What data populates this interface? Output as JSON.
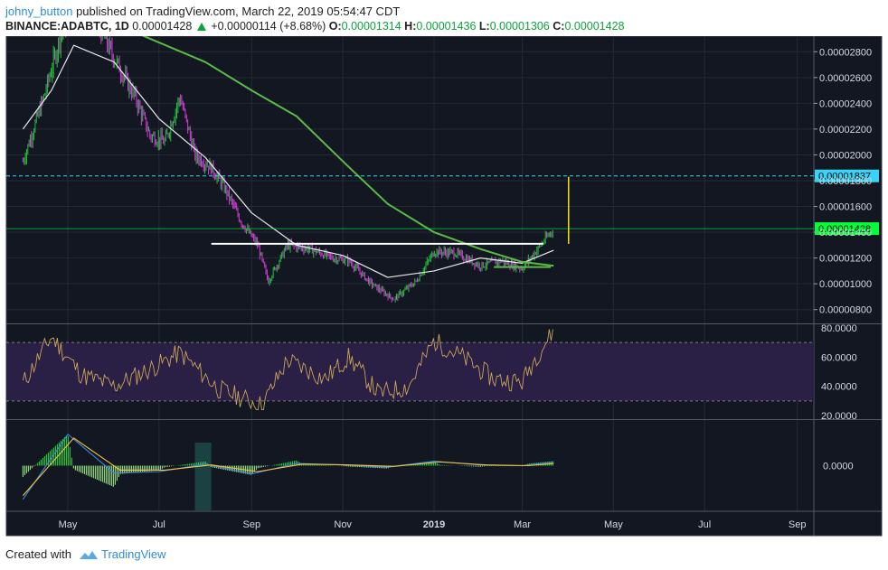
{
  "header": {
    "username": "johny_button",
    "published_text": "published on TradingView.com, March 22, 2019 05:54:47 CDT",
    "symbol": "BINANCE:ADABTC, 1D",
    "last": "0.00001428",
    "change": "+0.00000114 (+8.68%)",
    "o_label": "O:",
    "o_value": "0.00001314",
    "h_label": "H:",
    "h_value": "0.00001436",
    "l_label": "L:",
    "l_value": "0.00001306",
    "c_label": "C:",
    "c_value": "0.00001428"
  },
  "footer": {
    "created_with": "Created with",
    "brand": "TradingView"
  },
  "colors": {
    "background": "#131722",
    "up": "#26c23d",
    "down": "#d43ed9",
    "sma_fast": "#e8e8e8",
    "sma_slow": "#5cba47",
    "rsi": "#c9a35b",
    "rsi_band": "#2a1f44",
    "macd": "#3c8ae0",
    "signal": "#f5c242",
    "level_dashed": "#38d3f5",
    "last_price": "#00ff3a",
    "target": "#f5e10a"
  },
  "chart_data": {
    "type": "candlestick",
    "price_axis": {
      "range": [
        7e-06,
        2.9e-05
      ],
      "ticks": [
        "0.00000800",
        "0.00001000",
        "0.00001200",
        "0.00001400",
        "0.00001600",
        "0.00001800",
        "0.00002000",
        "0.00002200",
        "0.00002400",
        "0.00002600",
        "0.00002800"
      ]
    },
    "time_axis": {
      "labels": [
        "May",
        "Jul",
        "Sep",
        "Nov",
        "2019",
        "Mar",
        "May",
        "Jul",
        "Sep"
      ],
      "bold": [
        "2019"
      ]
    },
    "price_path": [
      {
        "date": "2018-04-01",
        "price": 1.95e-05
      },
      {
        "date": "2018-04-15",
        "price": 2.45e-05
      },
      {
        "date": "2018-04-28",
        "price": 3e-05
      },
      {
        "date": "2018-05-15",
        "price": 3.15e-05
      },
      {
        "date": "2018-06-01",
        "price": 2.75e-05
      },
      {
        "date": "2018-06-15",
        "price": 2.45e-05
      },
      {
        "date": "2018-06-25",
        "price": 2.15e-05
      },
      {
        "date": "2018-07-05",
        "price": 2.1e-05
      },
      {
        "date": "2018-07-15",
        "price": 2.45e-05
      },
      {
        "date": "2018-07-25",
        "price": 2e-05
      },
      {
        "date": "2018-08-05",
        "price": 1.9e-05
      },
      {
        "date": "2018-08-15",
        "price": 1.72e-05
      },
      {
        "date": "2018-08-25",
        "price": 1.48e-05
      },
      {
        "date": "2018-09-05",
        "price": 1.3e-05
      },
      {
        "date": "2018-09-12",
        "price": 1.02e-05
      },
      {
        "date": "2018-09-25",
        "price": 1.3e-05
      },
      {
        "date": "2018-10-10",
        "price": 1.27e-05
      },
      {
        "date": "2018-10-25",
        "price": 1.2e-05
      },
      {
        "date": "2018-11-05",
        "price": 1.18e-05
      },
      {
        "date": "2018-11-20",
        "price": 1e-05
      },
      {
        "date": "2018-12-05",
        "price": 8.8e-06
      },
      {
        "date": "2018-12-20",
        "price": 1.02e-05
      },
      {
        "date": "2019-01-01",
        "price": 1.25e-05
      },
      {
        "date": "2019-01-15",
        "price": 1.24e-05
      },
      {
        "date": "2019-02-01",
        "price": 1.14e-05
      },
      {
        "date": "2019-02-15",
        "price": 1.18e-05
      },
      {
        "date": "2019-03-01",
        "price": 1.12e-05
      },
      {
        "date": "2019-03-12",
        "price": 1.28e-05
      },
      {
        "date": "2019-03-22",
        "price": 1.428e-05
      }
    ],
    "sma_fast": [
      {
        "date": "2018-04-01",
        "price": 2.2e-05
      },
      {
        "date": "2018-04-20",
        "price": 2.5e-05
      },
      {
        "date": "2018-05-05",
        "price": 2.85e-05
      },
      {
        "date": "2018-06-01",
        "price": 2.72e-05
      },
      {
        "date": "2018-07-01",
        "price": 2.28e-05
      },
      {
        "date": "2018-08-01",
        "price": 1.98e-05
      },
      {
        "date": "2018-09-01",
        "price": 1.55e-05
      },
      {
        "date": "2018-10-01",
        "price": 1.3e-05
      },
      {
        "date": "2018-11-01",
        "price": 1.22e-05
      },
      {
        "date": "2018-12-01",
        "price": 1.05e-05
      },
      {
        "date": "2019-01-01",
        "price": 1.1e-05
      },
      {
        "date": "2019-02-01",
        "price": 1.2e-05
      },
      {
        "date": "2019-03-01",
        "price": 1.16e-05
      },
      {
        "date": "2019-03-22",
        "price": 1.26e-05
      }
    ],
    "sma_slow": [
      {
        "date": "2018-06-15",
        "price": 2.95e-05
      },
      {
        "date": "2018-08-01",
        "price": 2.72e-05
      },
      {
        "date": "2018-09-01",
        "price": 2.5e-05
      },
      {
        "date": "2018-10-01",
        "price": 2.3e-05
      },
      {
        "date": "2018-11-01",
        "price": 1.95e-05
      },
      {
        "date": "2018-12-01",
        "price": 1.62e-05
      },
      {
        "date": "2019-01-01",
        "price": 1.4e-05
      },
      {
        "date": "2019-02-01",
        "price": 1.27e-05
      },
      {
        "date": "2019-03-01",
        "price": 1.17e-05
      },
      {
        "date": "2019-03-22",
        "price": 1.14e-05
      }
    ],
    "levels": [
      {
        "name": "resistance-dashed",
        "price": 1.837e-05,
        "label": "0.00001837",
        "style": "dashed"
      },
      {
        "name": "last-price",
        "price": 1.428e-05,
        "label": "0.00001428",
        "style": "solid"
      }
    ],
    "drawings": [
      {
        "name": "neckline",
        "type": "horizontal-segment",
        "from": "2018-08-05",
        "to": "2019-03-15",
        "price": 1.31e-05
      },
      {
        "name": "consolidation-line",
        "type": "horizontal-segment",
        "from": "2019-02-10",
        "to": "2019-03-20",
        "price": 1.13e-05
      },
      {
        "name": "target-projection",
        "type": "vertical-segment",
        "date": "2019-04-01",
        "from_price": 1.31e-05,
        "to_price": 1.83e-05
      }
    ],
    "rsi": {
      "range": [
        20,
        80
      ],
      "ticks": [
        "20.0000",
        "40.0000",
        "60.0000",
        "80.0000"
      ],
      "band": [
        30,
        70
      ],
      "path": [
        {
          "date": "2018-04-01",
          "value": 42
        },
        {
          "date": "2018-04-20",
          "value": 74
        },
        {
          "date": "2018-05-10",
          "value": 48
        },
        {
          "date": "2018-06-01",
          "value": 40
        },
        {
          "date": "2018-07-01",
          "value": 55
        },
        {
          "date": "2018-07-15",
          "value": 63
        },
        {
          "date": "2018-08-10",
          "value": 38
        },
        {
          "date": "2018-09-08",
          "value": 27
        },
        {
          "date": "2018-09-25",
          "value": 58
        },
        {
          "date": "2018-10-20",
          "value": 45
        },
        {
          "date": "2018-11-05",
          "value": 60
        },
        {
          "date": "2018-11-25",
          "value": 35
        },
        {
          "date": "2018-12-15",
          "value": 40
        },
        {
          "date": "2019-01-01",
          "value": 71
        },
        {
          "date": "2019-01-20",
          "value": 60
        },
        {
          "date": "2019-02-10",
          "value": 45
        },
        {
          "date": "2019-03-01",
          "value": 43
        },
        {
          "date": "2019-03-10",
          "value": 60
        },
        {
          "date": "2019-03-22",
          "value": 78
        }
      ]
    },
    "macd": {
      "ticks": [
        "0.0000"
      ],
      "macd_path": [
        {
          "date": "2018-04-01",
          "value": -4.5e-06
        },
        {
          "date": "2018-05-01",
          "value": 4.2e-06
        },
        {
          "date": "2018-06-01",
          "value": -1e-06
        },
        {
          "date": "2018-07-01",
          "value": -8e-07
        },
        {
          "date": "2018-08-01",
          "value": 2e-07
        },
        {
          "date": "2018-09-01",
          "value": -1.1e-06
        },
        {
          "date": "2018-10-01",
          "value": 3e-07
        },
        {
          "date": "2018-11-01",
          "value": 1e-07
        },
        {
          "date": "2018-12-01",
          "value": -2e-07
        },
        {
          "date": "2019-01-01",
          "value": 6e-07
        },
        {
          "date": "2019-02-01",
          "value": 1e-07
        },
        {
          "date": "2019-03-01",
          "value": 0.0
        },
        {
          "date": "2019-03-22",
          "value": 5e-07
        }
      ],
      "signal_path": [
        {
          "date": "2018-04-01",
          "value": -4e-06
        },
        {
          "date": "2018-05-05",
          "value": 3.7e-06
        },
        {
          "date": "2018-06-05",
          "value": -6e-07
        },
        {
          "date": "2018-07-05",
          "value": -6e-07
        },
        {
          "date": "2018-08-05",
          "value": 1e-07
        },
        {
          "date": "2018-09-05",
          "value": -8e-07
        },
        {
          "date": "2018-10-05",
          "value": 2e-07
        },
        {
          "date": "2018-11-05",
          "value": 1e-07
        },
        {
          "date": "2018-12-05",
          "value": -1e-07
        },
        {
          "date": "2019-01-05",
          "value": 5e-07
        },
        {
          "date": "2019-02-05",
          "value": 1e-07
        },
        {
          "date": "2019-03-05",
          "value": 0.0
        },
        {
          "date": "2019-03-22",
          "value": 3e-07
        }
      ],
      "highlight": {
        "from": "2018-07-25",
        "to": "2018-08-05"
      }
    }
  }
}
